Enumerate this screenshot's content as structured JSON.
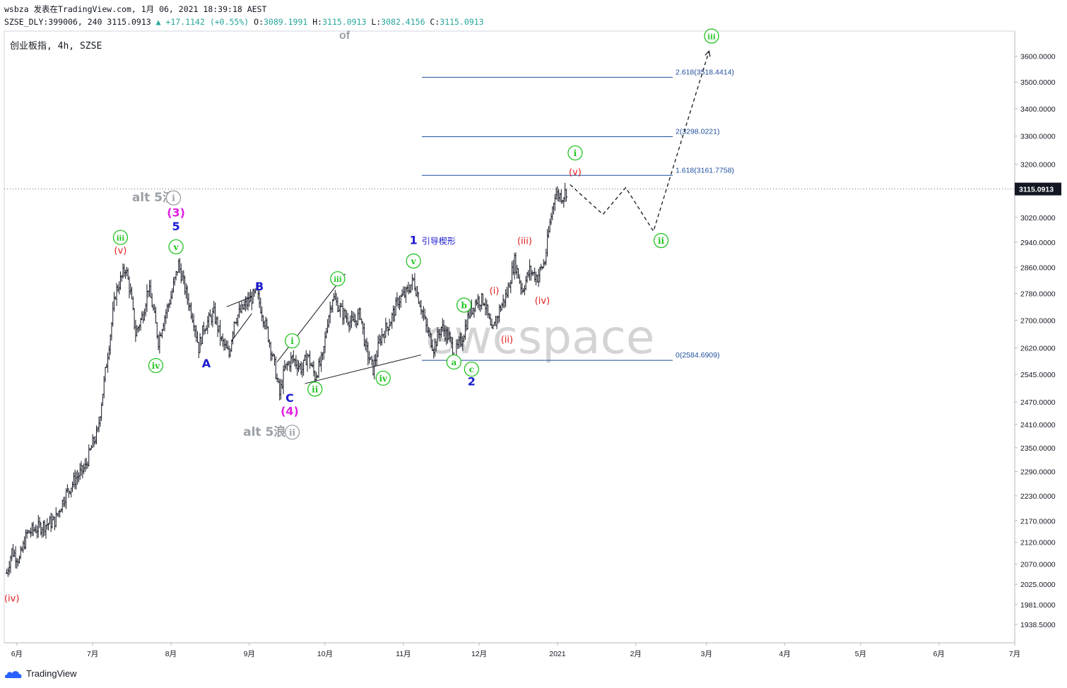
{
  "header": {
    "line1": "wsbza 发表在TradingView.com, 1月 06, 2021 18:39:18 AEST",
    "line2_prefix": "SZSE_DLY:399006, 240 3115.0913",
    "line2_change": "▲ +17.1142 (+0.55%)",
    "line2_o_label": " O:",
    "line2_o": "3089.1991",
    "line2_h_label": " H:",
    "line2_h": "3115.0913",
    "line2_l_label": " L:",
    "line2_l": "3082.4156",
    "line2_c_label": " C:",
    "line2_c": "3115.0913"
  },
  "symbol_label": "创业板指, 4h, SZSE",
  "watermark": "ewcspace",
  "brand": "TradingView",
  "colors": {
    "up": "#26a69a",
    "fib": "#1e4e9c",
    "green": "#22c322",
    "red": "#e02020",
    "blue": "#1a1ad0",
    "magenta": "#e020e0",
    "gray": "#9aa0a6"
  },
  "chart_data": {
    "type": "ohlc-bar",
    "symbol": "SZSE_DLY:399006",
    "interval": "240",
    "last_price": "3115.0913",
    "y_axis": {
      "scale": "log",
      "ticks": [
        "3600.0000",
        "3500.0000",
        "3400.0000",
        "3300.0000",
        "3200.0000",
        "3020.0000",
        "2940.0000",
        "2860.0000",
        "2780.0000",
        "2700.0000",
        "2620.0000",
        "2545.0000",
        "2470.0000",
        "2410.0000",
        "2350.0000",
        "2290.0000",
        "2230.0000",
        "2170.0000",
        "2120.0000",
        "2070.0000",
        "2025.0000",
        "1981.0000",
        "1938.5000"
      ]
    },
    "x_axis": {
      "ticks": [
        "6月",
        "7月",
        "8月",
        "9月",
        "10月",
        "11月",
        "12月",
        "2021",
        "2月",
        "3月",
        "4月",
        "5月",
        "6月",
        "7月"
      ]
    },
    "fib_levels": [
      {
        "label": "2.618(3518.4414)",
        "value": 3518.4414
      },
      {
        "label": "2(3298.0221)",
        "value": 3298.0221
      },
      {
        "label": "1.618(3161.7758)",
        "value": 3161.7758
      },
      {
        "label": "0(2584.6909)",
        "value": 2584.6909
      }
    ],
    "price_path": [
      [
        "2020-05-28",
        2050
      ],
      [
        "2020-05-30",
        2100
      ],
      [
        "2020-06-02",
        2080
      ],
      [
        "2020-06-05",
        2140
      ],
      [
        "2020-06-08",
        2150
      ],
      [
        "2020-06-12",
        2160
      ],
      [
        "2020-06-16",
        2170
      ],
      [
        "2020-06-20",
        2230
      ],
      [
        "2020-06-24",
        2270
      ],
      [
        "2020-06-28",
        2300
      ],
      [
        "2020-07-01",
        2360
      ],
      [
        "2020-07-03",
        2390
      ],
      [
        "2020-07-06",
        2550
      ],
      [
        "2020-07-08",
        2660
      ],
      [
        "2020-07-10",
        2780
      ],
      [
        "2020-07-14",
        2860
      ],
      [
        "2020-07-16",
        2780
      ],
      [
        "2020-07-18",
        2660
      ],
      [
        "2020-07-21",
        2720
      ],
      [
        "2020-07-23",
        2800
      ],
      [
        "2020-07-25",
        2730
      ],
      [
        "2020-07-27",
        2640
      ],
      [
        "2020-07-29",
        2700
      ],
      [
        "2020-08-01",
        2770
      ],
      [
        "2020-08-04",
        2870
      ],
      [
        "2020-08-07",
        2780
      ],
      [
        "2020-08-10",
        2700
      ],
      [
        "2020-08-12",
        2620
      ],
      [
        "2020-08-14",
        2680
      ],
      [
        "2020-08-18",
        2720
      ],
      [
        "2020-08-21",
        2640
      ],
      [
        "2020-08-24",
        2600
      ],
      [
        "2020-08-26",
        2700
      ],
      [
        "2020-08-29",
        2730
      ],
      [
        "2020-09-01",
        2760
      ],
      [
        "2020-09-04",
        2780
      ],
      [
        "2020-09-08",
        2670
      ],
      [
        "2020-09-11",
        2570
      ],
      [
        "2020-09-13",
        2490
      ],
      [
        "2020-09-15",
        2560
      ],
      [
        "2020-09-18",
        2590
      ],
      [
        "2020-09-22",
        2560
      ],
      [
        "2020-09-24",
        2600
      ],
      [
        "2020-09-27",
        2540
      ],
      [
        "2020-09-30",
        2590
      ],
      [
        "2020-10-02",
        2700
      ],
      [
        "2020-10-04",
        2770
      ],
      [
        "2020-10-08",
        2720
      ],
      [
        "2020-10-12",
        2690
      ],
      [
        "2020-10-15",
        2720
      ],
      [
        "2020-10-17",
        2620
      ],
      [
        "2020-10-20",
        2560
      ],
      [
        "2020-10-23",
        2650
      ],
      [
        "2020-10-27",
        2700
      ],
      [
        "2020-10-30",
        2760
      ],
      [
        "2020-11-02",
        2780
      ],
      [
        "2020-11-05",
        2820
      ],
      [
        "2020-11-08",
        2740
      ],
      [
        "2020-11-10",
        2680
      ],
      [
        "2020-11-13",
        2620
      ],
      [
        "2020-11-16",
        2680
      ],
      [
        "2020-11-19",
        2650
      ],
      [
        "2020-11-21",
        2600
      ],
      [
        "2020-11-24",
        2640
      ],
      [
        "2020-11-27",
        2720
      ],
      [
        "2020-11-30",
        2760
      ],
      [
        "2020-12-03",
        2760
      ],
      [
        "2020-12-06",
        2660
      ],
      [
        "2020-12-09",
        2730
      ],
      [
        "2020-12-12",
        2780
      ],
      [
        "2020-12-15",
        2880
      ],
      [
        "2020-12-18",
        2790
      ],
      [
        "2020-12-21",
        2850
      ],
      [
        "2020-12-24",
        2830
      ],
      [
        "2020-12-27",
        2880
      ],
      [
        "2020-12-29",
        3000
      ],
      [
        "2020-12-31",
        3100
      ],
      [
        "2021-01-03",
        3090
      ],
      [
        "2021-01-05",
        3115
      ]
    ],
    "projection": [
      [
        "2021-01-06",
        3130
      ],
      [
        "2021-01-19",
        3030
      ],
      [
        "2021-01-28",
        3120
      ],
      [
        "2021-02-08",
        2975
      ],
      [
        "2021-03-02",
        3620
      ]
    ],
    "lines": [
      {
        "from": [
          "2020-08-23",
          2740
        ],
        "to": [
          "2020-09-02",
          2770
        ]
      },
      {
        "from": [
          "2020-08-25",
          2640
        ],
        "to": [
          "2020-09-02",
          2720
        ]
      },
      {
        "from": [
          "2020-09-12",
          2580
        ],
        "to": [
          "2020-10-09",
          2840
        ]
      },
      {
        "from": [
          "2020-09-23",
          2520
        ],
        "to": [
          "2020-11-08",
          2600
        ]
      }
    ],
    "labels": [
      {
        "text": "(iv)",
        "color": "red",
        "x": "2020-05-30",
        "y": 1995
      },
      {
        "text": "iii",
        "color": "green",
        "circle": true,
        "x": "2020-07-12",
        "y": 2955
      },
      {
        "text": "(v)",
        "color": "red",
        "x": "2020-07-12",
        "y": 2915
      },
      {
        "text": "iv",
        "color": "green",
        "circle": true,
        "x": "2020-07-26",
        "y": 2570
      },
      {
        "text": "alt 5浪",
        "color": "gray",
        "x": "2020-07-25",
        "y": 3085
      },
      {
        "text": "i",
        "color": "gray",
        "circle": true,
        "x": "2020-08-02",
        "y": 3085
      },
      {
        "text": "(3)",
        "color": "magenta",
        "x": "2020-08-03",
        "y": 3035
      },
      {
        "text": "5",
        "color": "blue",
        "x": "2020-08-03",
        "y": 2990
      },
      {
        "text": "v",
        "color": "green",
        "circle": true,
        "x": "2020-08-03",
        "y": 2925
      },
      {
        "text": "A",
        "color": "blue",
        "x": "2020-08-15",
        "y": 2575
      },
      {
        "text": "B",
        "color": "blue",
        "x": "2020-09-05",
        "y": 2800
      },
      {
        "text": "i",
        "color": "green",
        "circle": true,
        "x": "2020-09-18",
        "y": 2640
      },
      {
        "text": "C",
        "color": "blue",
        "x": "2020-09-17",
        "y": 2480
      },
      {
        "text": "(4)",
        "color": "magenta",
        "x": "2020-09-17",
        "y": 2445
      },
      {
        "text": "alt 5浪",
        "color": "gray",
        "x": "2020-09-07",
        "y": 2390
      },
      {
        "text": "ii",
        "color": "gray",
        "circle": true,
        "x": "2020-09-18",
        "y": 2390
      },
      {
        "text": "ii",
        "color": "green",
        "circle": true,
        "x": "2020-09-27",
        "y": 2505
      },
      {
        "text": "iii",
        "color": "green",
        "circle": true,
        "x": "2020-10-06",
        "y": 2825
      },
      {
        "text": "iv",
        "color": "green",
        "circle": true,
        "x": "2020-10-24",
        "y": 2535
      },
      {
        "text": "1",
        "color": "blue",
        "x": "2020-11-05",
        "y": 2945
      },
      {
        "text": "引导楔形",
        "color": "blue",
        "x": "2020-11-15",
        "y": 2945
      },
      {
        "text": "v",
        "color": "green",
        "circle": true,
        "x": "2020-11-05",
        "y": 2880
      },
      {
        "text": "b",
        "color": "green",
        "circle": true,
        "x": "2020-11-25",
        "y": 2745
      },
      {
        "text": "a",
        "color": "green",
        "circle": true,
        "x": "2020-11-21",
        "y": 2580
      },
      {
        "text": "c",
        "color": "green",
        "circle": true,
        "x": "2020-11-28",
        "y": 2560
      },
      {
        "text": "2",
        "color": "blue",
        "x": "2020-11-28",
        "y": 2525
      },
      {
        "text": "(i)",
        "color": "red",
        "x": "2020-12-07",
        "y": 2790
      },
      {
        "text": "(ii)",
        "color": "red",
        "x": "2020-12-12",
        "y": 2645
      },
      {
        "text": "(iii)",
        "color": "red",
        "x": "2020-12-19",
        "y": 2945
      },
      {
        "text": "(iv)",
        "color": "red",
        "x": "2020-12-26",
        "y": 2760
      },
      {
        "text": "i",
        "color": "green",
        "circle": true,
        "x": "2021-01-08",
        "y": 3240
      },
      {
        "text": "(v)",
        "color": "red",
        "x": "2021-01-08",
        "y": 3175
      },
      {
        "text": "ii",
        "color": "green",
        "circle": true,
        "x": "2021-02-11",
        "y": 2945
      },
      {
        "text": "iii",
        "color": "green",
        "circle": true,
        "x": "2021-03-03",
        "y": 3680
      }
    ]
  },
  "stray_text": "of"
}
